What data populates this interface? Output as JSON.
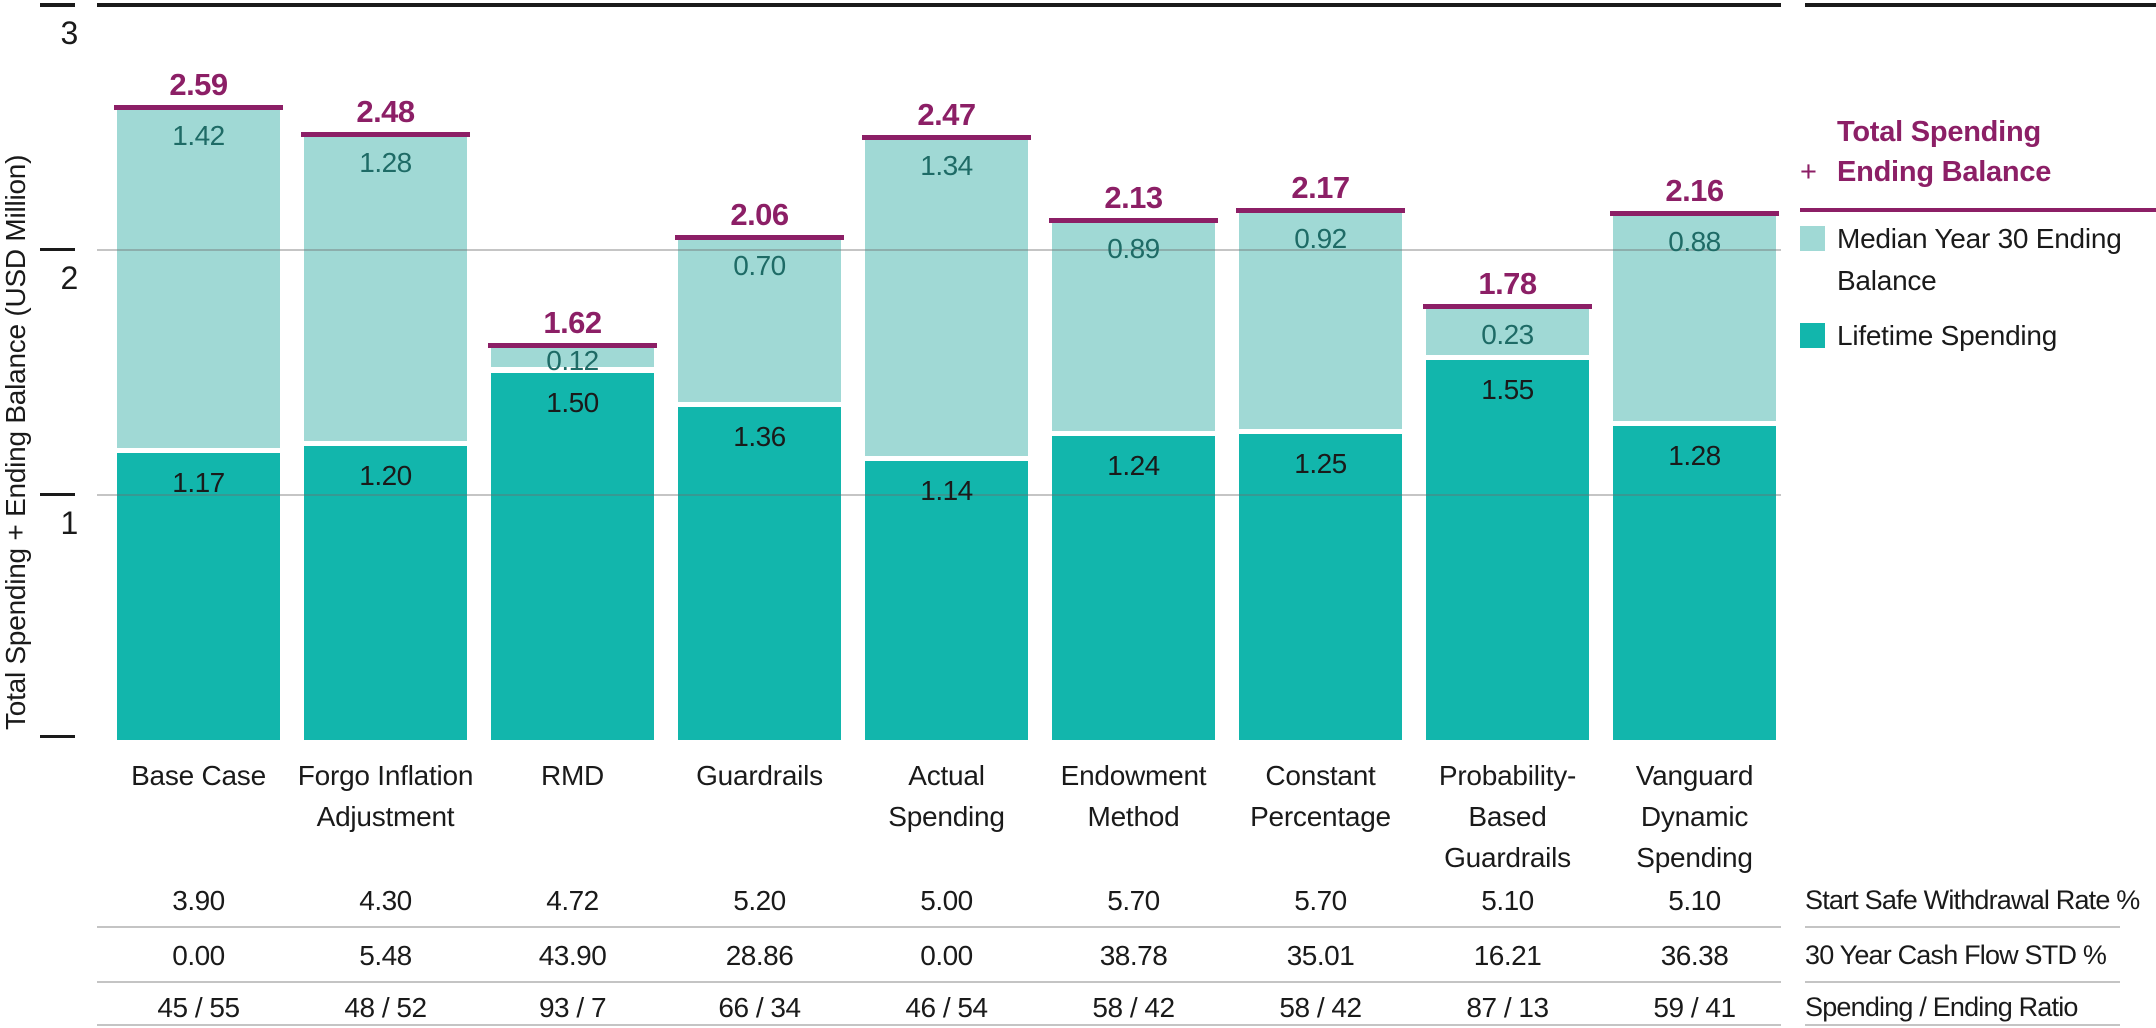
{
  "chart_data": {
    "type": "bar",
    "stacked": true,
    "title": "",
    "ylabel": "Total Spending + Ending Balance (USD Million)",
    "ylim": [
      0,
      3
    ],
    "yticks": [
      "3",
      "2",
      "1"
    ],
    "grid": "horizontal",
    "legend_position": "right",
    "categories": [
      "Base Case",
      "Forgo Inflation Adjustment",
      "RMD",
      "Guardrails",
      "Actual Spending",
      "Endowment Method",
      "Constant Percentage",
      "Probability-Based Guardrails",
      "Vanguard Dynamic Spending"
    ],
    "categories_lines": [
      [
        "Base Case"
      ],
      [
        "Forgo Inflation",
        "Adjustment"
      ],
      [
        "RMD"
      ],
      [
        "Guardrails"
      ],
      [
        "Actual",
        "Spending"
      ],
      [
        "Endowment",
        "Method"
      ],
      [
        "Constant",
        "Percentage"
      ],
      [
        "Probability-",
        "Based",
        "Guardrails"
      ],
      [
        "Vanguard",
        "Dynamic",
        "Spending"
      ]
    ],
    "series": [
      {
        "name": "Lifetime Spending",
        "color": "#12b6ac",
        "label_color": "#1a1a1a",
        "values": [
          "1.17",
          "1.20",
          "1.50",
          "1.36",
          "1.14",
          "1.24",
          "1.25",
          "1.55",
          "1.28"
        ]
      },
      {
        "name": "Median Year 30 Ending Balance",
        "color": "#a0d9d5",
        "label_color": "#1e6b66",
        "values": [
          "1.42",
          "1.28",
          "0.12",
          "0.70",
          "1.34",
          "0.89",
          "0.92",
          "0.23",
          "0.88"
        ]
      }
    ],
    "totals": {
      "name": "Total Spending + Ending Balance",
      "color": "#8c1f66",
      "values": [
        "2.59",
        "2.48",
        "1.62",
        "2.06",
        "2.47",
        "2.13",
        "2.17",
        "1.78",
        "2.16"
      ]
    },
    "footer_table": {
      "rows": [
        {
          "label": "Start Safe Withdrawal Rate %",
          "values": [
            "3.90",
            "4.30",
            "4.72",
            "5.20",
            "5.00",
            "5.70",
            "5.70",
            "5.10",
            "5.10"
          ]
        },
        {
          "label": "30 Year Cash Flow STD %",
          "values": [
            "0.00",
            "5.48",
            "43.90",
            "28.86",
            "0.00",
            "38.78",
            "35.01",
            "16.21",
            "36.38"
          ]
        },
        {
          "label": "Spending / Ending Ratio",
          "values": [
            "45 / 55",
            "48 / 52",
            "93 / 7",
            "66 / 34",
            "46 / 54",
            "58 / 42",
            "58 / 42",
            "87 / 13",
            "59 / 41"
          ]
        }
      ]
    }
  },
  "legend": {
    "total": {
      "line1": "Total Spending",
      "plus": "+",
      "line2": "Ending Balance",
      "color": "#8c1f66"
    },
    "items": [
      {
        "label": "Median Year 30 Ending Balance",
        "color": "#a0d9d5"
      },
      {
        "label": "Lifetime Spending",
        "color": "#12b6ac"
      }
    ]
  },
  "colors": {
    "accent_purple": "#8c1f66",
    "teal_dark": "#12b6ac",
    "teal_light": "#a0d9d5",
    "axis_dark": "#1a1a1a",
    "table_rule": "#c4c4c4"
  }
}
